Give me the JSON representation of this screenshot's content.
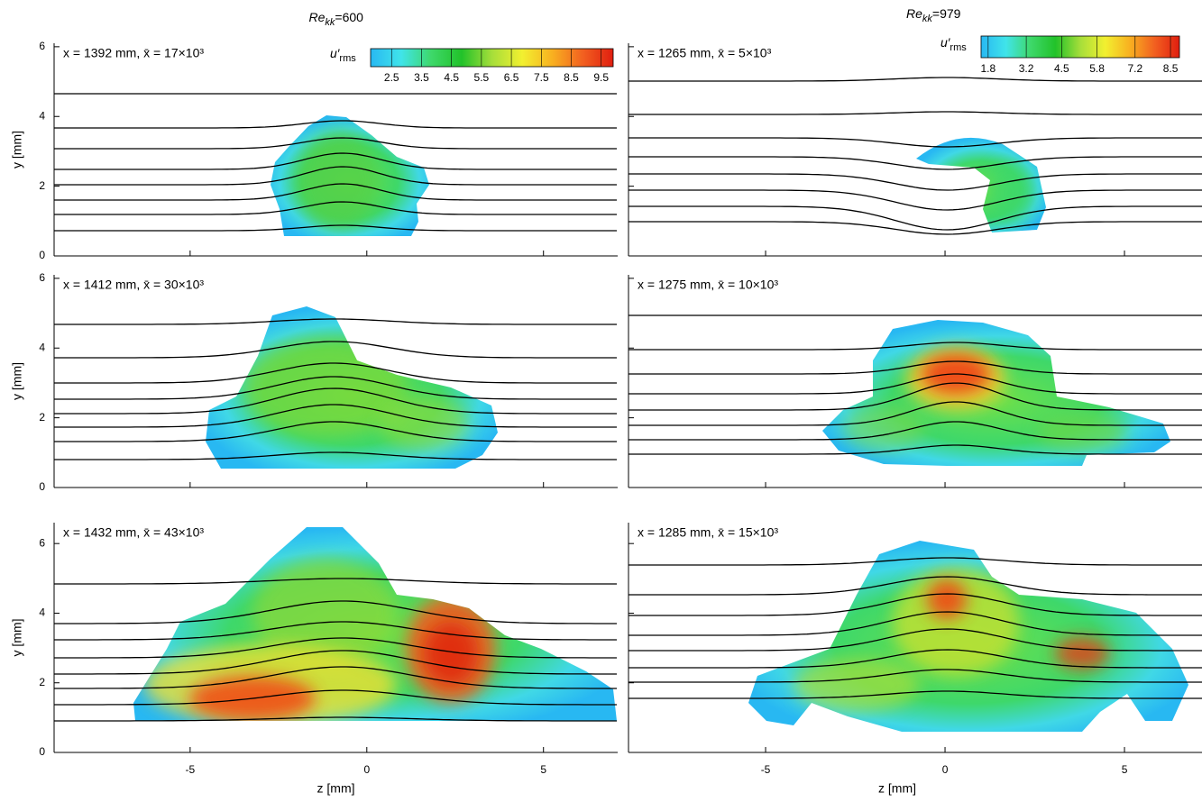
{
  "chart_data": [
    {
      "type": "contour",
      "column_title": [
        "Re",
        "kk",
        "=600"
      ],
      "annotation": "x = 1392 mm, x̄ = 17×10³",
      "ylabel": "y [mm]",
      "xlim": [
        -8.85,
        7.1
      ],
      "ylim": [
        0,
        6.1
      ],
      "xticks": [
        -5,
        0,
        5
      ],
      "yticks": [
        0,
        2,
        4,
        6
      ],
      "colorbar": {
        "label": [
          "u′",
          "rms"
        ],
        "lim": [
          1.8,
          9.9
        ],
        "ticks": [
          2.5,
          3.5,
          4.5,
          5.5,
          6.5,
          7.5,
          8.5,
          9.5
        ],
        "colors": [
          "#28b8f2",
          "#40e4ea",
          "#3ed86a",
          "#22c22a",
          "#a6de3a",
          "#f2f030",
          "#f8b020",
          "#f26020",
          "#e01e10"
        ]
      }
    },
    {
      "type": "contour",
      "column_title": [
        "Re",
        "kk",
        "=979"
      ],
      "annotation": "x = 1265 mm, x̄ = 5×10³",
      "xlim": [
        -8.82,
        7.16
      ],
      "ylim": [
        0,
        6.1
      ],
      "xticks": [
        -5,
        0,
        5
      ],
      "yticks": [
        0,
        2,
        4,
        6
      ],
      "colorbar": {
        "label": [
          "u′",
          "rms"
        ],
        "lim": [
          1.54,
          8.83
        ],
        "ticks": [
          1.8,
          3.2,
          4.5,
          5.8,
          7.2,
          8.5
        ],
        "colors": [
          "#28b8f2",
          "#40e4ea",
          "#3ed86a",
          "#22c22a",
          "#a6de3a",
          "#f2f030",
          "#f8b020",
          "#f26020",
          "#e01e10"
        ]
      }
    },
    {
      "type": "contour",
      "annotation": "x = 1412 mm, x̄ = 30×10³",
      "ylabel": "y [mm]",
      "xlim": [
        -8.85,
        7.1
      ],
      "ylim": [
        0,
        6.1
      ],
      "xticks": [
        -5,
        0,
        5
      ],
      "yticks": [
        0,
        2,
        4,
        6
      ]
    },
    {
      "type": "contour",
      "annotation": "x = 1275 mm, x̄ = 10×10³",
      "xlim": [
        -8.82,
        7.16
      ],
      "ylim": [
        0,
        6.1
      ],
      "xticks": [
        -5,
        0,
        5
      ],
      "yticks": [
        0,
        2,
        4,
        6
      ]
    },
    {
      "type": "contour",
      "annotation": "x = 1432 mm, x̄ = 43×10³",
      "ylabel": "y [mm]",
      "xlabel": "z [mm]",
      "xlim": [
        -8.85,
        7.1
      ],
      "ylim": [
        0,
        6.6
      ],
      "xticks": [
        -5,
        0,
        5
      ],
      "yticks": [
        0,
        2,
        4,
        6
      ]
    },
    {
      "type": "contour",
      "annotation": "x = 1285 mm, x̄ = 15×10³",
      "xlabel": "z [mm]",
      "xlim": [
        -8.82,
        7.16
      ],
      "ylim": [
        0,
        6.6
      ],
      "xticks": [
        -5,
        0,
        5
      ],
      "yticks": [
        0,
        2,
        4,
        6
      ]
    }
  ]
}
